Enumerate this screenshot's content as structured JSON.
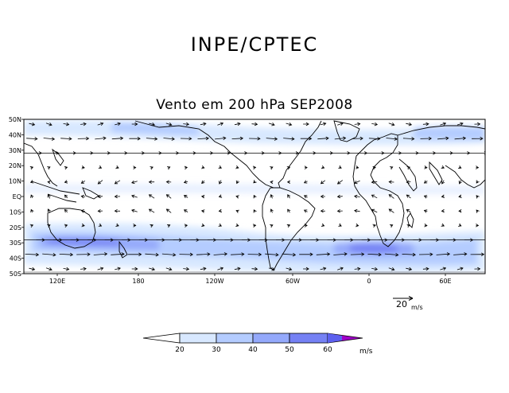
{
  "header": {
    "title": "INPE/CPTEC"
  },
  "plot": {
    "title": "Vento em 200 hPa SEP2008"
  },
  "map": {
    "lat_labels": [
      "50N",
      "40N",
      "30N",
      "20N",
      "10N",
      "EQ",
      "10S",
      "20S",
      "30S",
      "40S",
      "50S"
    ],
    "lon_labels": [
      "120E",
      "180",
      "120W",
      "60W",
      "0",
      "60E"
    ],
    "land_color": "#000000",
    "shade_colors": [
      "#d8e8ff",
      "#b4ccff",
      "#94a9fb",
      "#7581f4",
      "#5c60ee",
      "#a000c8"
    ]
  },
  "vector_legend": {
    "value": "20",
    "unit": "m/s"
  },
  "colorbar": {
    "ticks": [
      "20",
      "30",
      "40",
      "50",
      "60"
    ],
    "unit": "m/s"
  }
}
